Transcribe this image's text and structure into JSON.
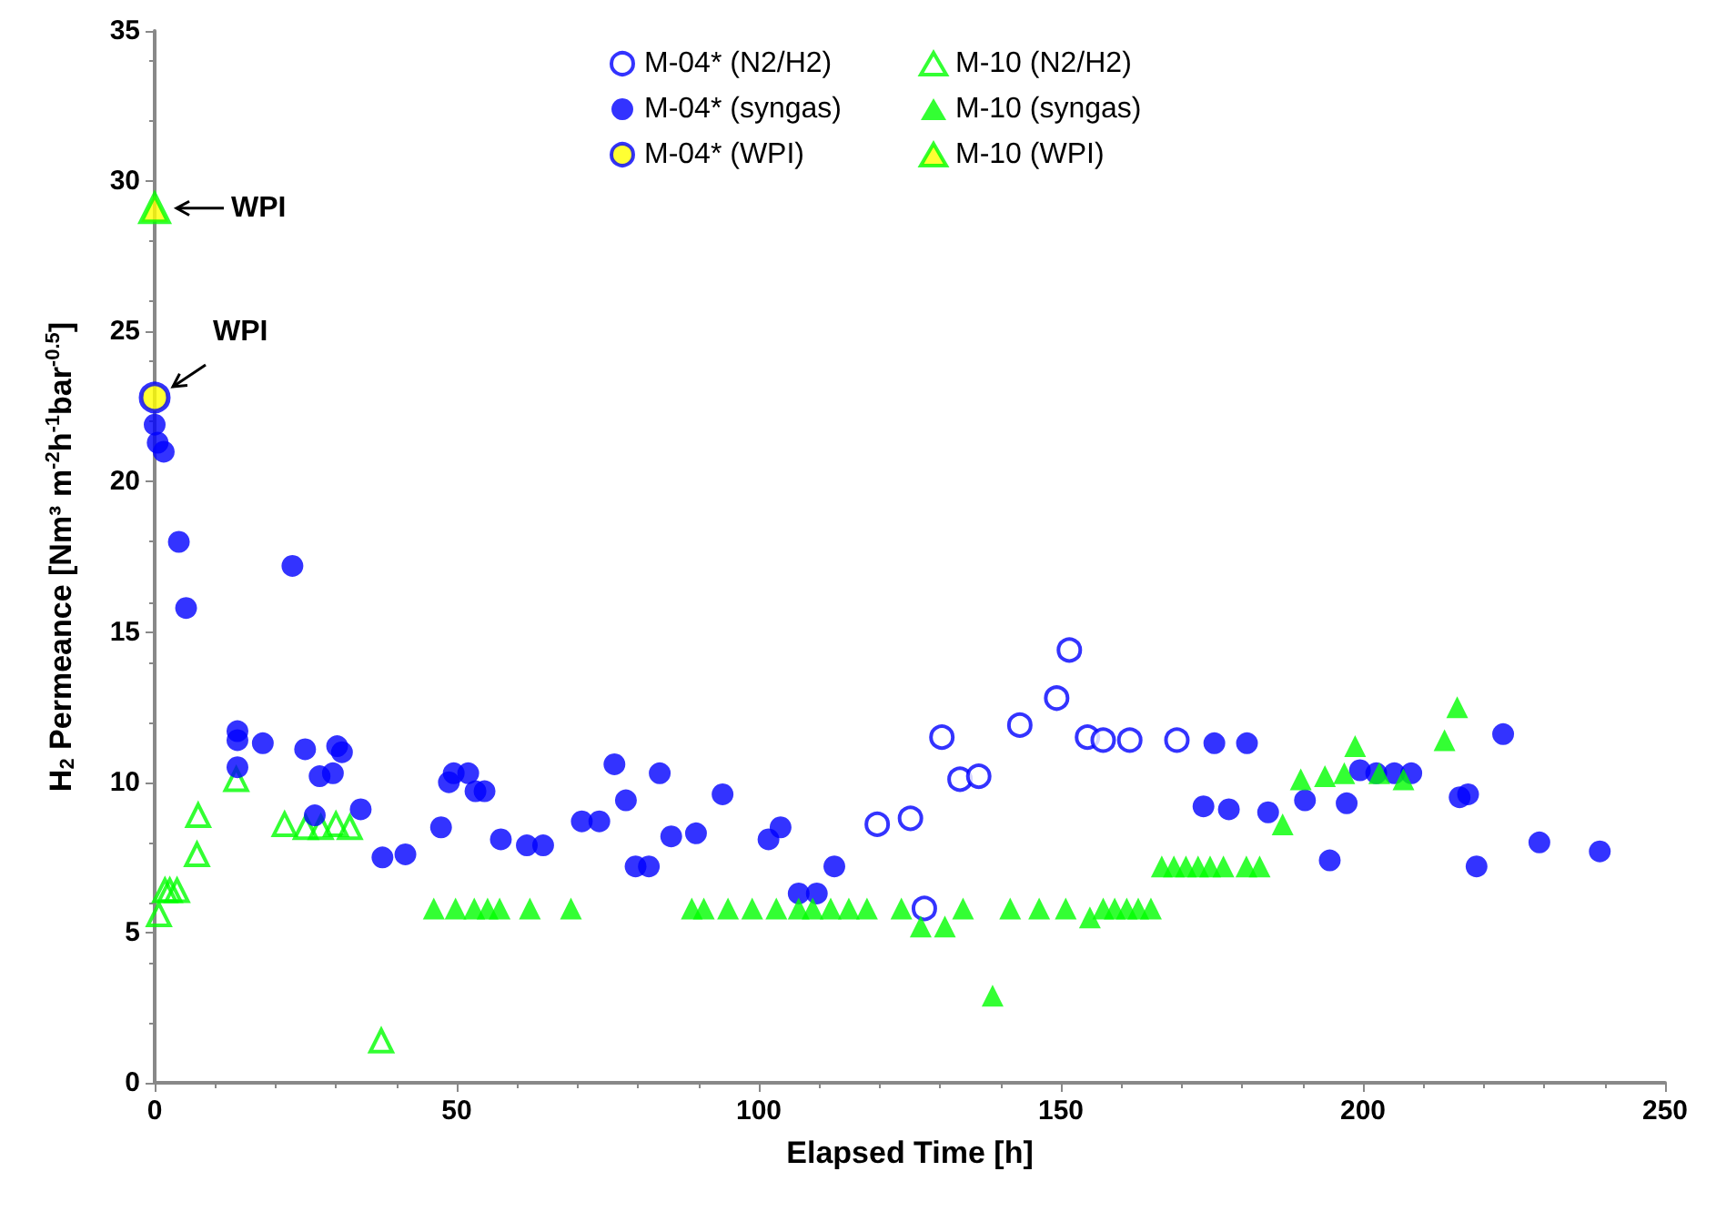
{
  "chart_data": {
    "type": "scatter",
    "xlabel": "Elapsed Time [h]",
    "ylabel": "H$_{2}$ Permeance [Nm³ m$^{-2}$h$^{-1}$bar$^{-0.5}$]",
    "xlim": [
      0,
      250
    ],
    "xticks": [
      0,
      50,
      100,
      150,
      200,
      250
    ],
    "ylim": [
      0,
      35
    ],
    "yticks": [
      0,
      5,
      10,
      15,
      20,
      25,
      30,
      35
    ],
    "grid": false,
    "legend": "top",
    "annotations": [
      {
        "text": "WPI",
        "x": 0,
        "y": 29.1
      },
      {
        "text": "WPI",
        "x": 0,
        "y": 22.8
      }
    ],
    "series": [
      {
        "name": "M-04* (N2/H2)",
        "color": "#0000ff",
        "marker": "circle-open",
        "x": [
          119.6,
          125.1,
          127.4,
          130.3,
          133.3,
          136.4,
          143.2,
          149.3,
          151.4,
          154.4,
          157.0,
          161.4,
          169.2
        ],
        "values": [
          8.6,
          8.8,
          5.8,
          11.5,
          10.1,
          10.2,
          11.9,
          12.8,
          14.4,
          11.5,
          11.4,
          11.4,
          11.4
        ]
      },
      {
        "name": "M-10 (N2/H2)",
        "color": "#00ff00",
        "marker": "triangle-open",
        "x": [
          0.7,
          1.7,
          2.5,
          3.7,
          7.0,
          7.2,
          13.5,
          21.5,
          25.0,
          27.5,
          30.0,
          32.3,
          37.5
        ],
        "values": [
          5.6,
          6.4,
          6.4,
          6.4,
          7.6,
          8.9,
          10.1,
          8.6,
          8.5,
          8.5,
          8.6,
          8.5,
          1.4
        ]
      },
      {
        "name": "M-04* (syngas)",
        "color": "#0000ff",
        "marker": "circle",
        "x": [
          0,
          0.5,
          1.5,
          4.0,
          5.2,
          22.8,
          13.7,
          13.7,
          13.7,
          17.9,
          24.9,
          26.5,
          27.3,
          29.5,
          30.2,
          31.0,
          34.1,
          37.7,
          41.5,
          47.4,
          48.7,
          49.5,
          51.9,
          53.1,
          54.6,
          57.3,
          61.6,
          64.3,
          70.7,
          73.6,
          76.1,
          78.0,
          79.6,
          81.8,
          83.6,
          85.5,
          89.6,
          94.0,
          101.6,
          103.6,
          106.6,
          109.6,
          112.5,
          173.6,
          175.4,
          177.8,
          180.8,
          184.3,
          190.4,
          194.5,
          197.3,
          199.5,
          202.2,
          205.2,
          208.0,
          216.0,
          217.4,
          218.8,
          223.2,
          229.2,
          239.2
        ],
        "values": [
          21.9,
          21.3,
          21.0,
          18.0,
          15.8,
          17.2,
          11.7,
          11.4,
          10.5,
          11.3,
          11.1,
          8.9,
          10.2,
          10.3,
          11.2,
          11.0,
          9.1,
          7.5,
          7.6,
          8.5,
          10.0,
          10.3,
          10.3,
          9.7,
          9.7,
          8.1,
          7.9,
          7.9,
          8.7,
          8.7,
          10.6,
          9.4,
          7.2,
          7.2,
          10.3,
          8.2,
          8.3,
          9.6,
          8.1,
          8.5,
          6.3,
          6.3,
          7.2,
          9.2,
          11.3,
          9.1,
          11.3,
          9.0,
          9.4,
          7.4,
          9.3,
          10.4,
          10.3,
          10.3,
          10.3,
          9.5,
          9.6,
          7.2,
          11.6,
          8.0,
          7.7
        ]
      },
      {
        "name": "M-10 (syngas)",
        "color": "#00ff00",
        "marker": "triangle",
        "x": [
          46.2,
          49.8,
          52.9,
          55.1,
          57.1,
          62.1,
          68.9,
          88.9,
          90.9,
          94.9,
          98.9,
          102.9,
          106.6,
          108.9,
          111.9,
          114.9,
          117.9,
          123.6,
          126.8,
          130.8,
          133.8,
          138.7,
          141.6,
          146.4,
          150.8,
          154.8,
          157.0,
          158.9,
          160.9,
          162.8,
          164.9,
          166.7,
          168.7,
          170.7,
          172.7,
          174.7,
          176.9,
          180.7,
          182.9,
          186.7,
          189.7,
          193.7,
          196.9,
          198.7,
          202.7,
          206.7,
          213.5,
          215.6
        ],
        "values": [
          5.8,
          5.8,
          5.8,
          5.8,
          5.8,
          5.8,
          5.8,
          5.8,
          5.8,
          5.8,
          5.8,
          5.8,
          5.8,
          5.8,
          5.8,
          5.8,
          5.8,
          5.8,
          5.2,
          5.2,
          5.8,
          2.9,
          5.8,
          5.8,
          5.8,
          5.5,
          5.8,
          5.8,
          5.8,
          5.8,
          5.8,
          7.2,
          7.2,
          7.2,
          7.2,
          7.2,
          7.2,
          7.2,
          7.2,
          8.6,
          10.1,
          10.2,
          10.3,
          11.2,
          10.3,
          10.1,
          11.4,
          12.5
        ]
      },
      {
        "name": "M-04* (WPI)",
        "color": "#ffff00",
        "marker": "circle",
        "x": [
          0
        ],
        "values": [
          22.8
        ]
      },
      {
        "name": "M-10 (WPI)",
        "color": "#ffff00",
        "marker": "triangle",
        "x": [
          0
        ],
        "values": [
          29.1
        ]
      }
    ]
  }
}
